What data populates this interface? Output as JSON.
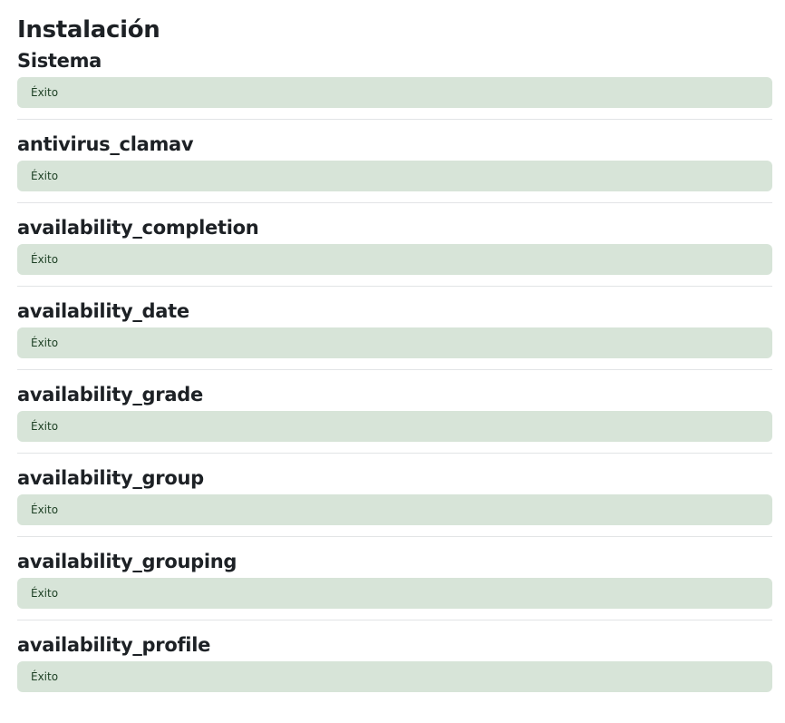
{
  "page": {
    "title": "Instalación"
  },
  "sections": [
    {
      "heading": "Sistema",
      "status": "Éxito"
    },
    {
      "heading": "antivirus_clamav",
      "status": "Éxito"
    },
    {
      "heading": "availability_completion",
      "status": "Éxito"
    },
    {
      "heading": "availability_date",
      "status": "Éxito"
    },
    {
      "heading": "availability_grade",
      "status": "Éxito"
    },
    {
      "heading": "availability_group",
      "status": "Éxito"
    },
    {
      "heading": "availability_grouping",
      "status": "Éxito"
    },
    {
      "heading": "availability_profile",
      "status": "Éxito"
    }
  ],
  "colors": {
    "success_background": "#d7e4d8",
    "success_text": "#1c3f23",
    "divider": "#e2e4e6"
  }
}
